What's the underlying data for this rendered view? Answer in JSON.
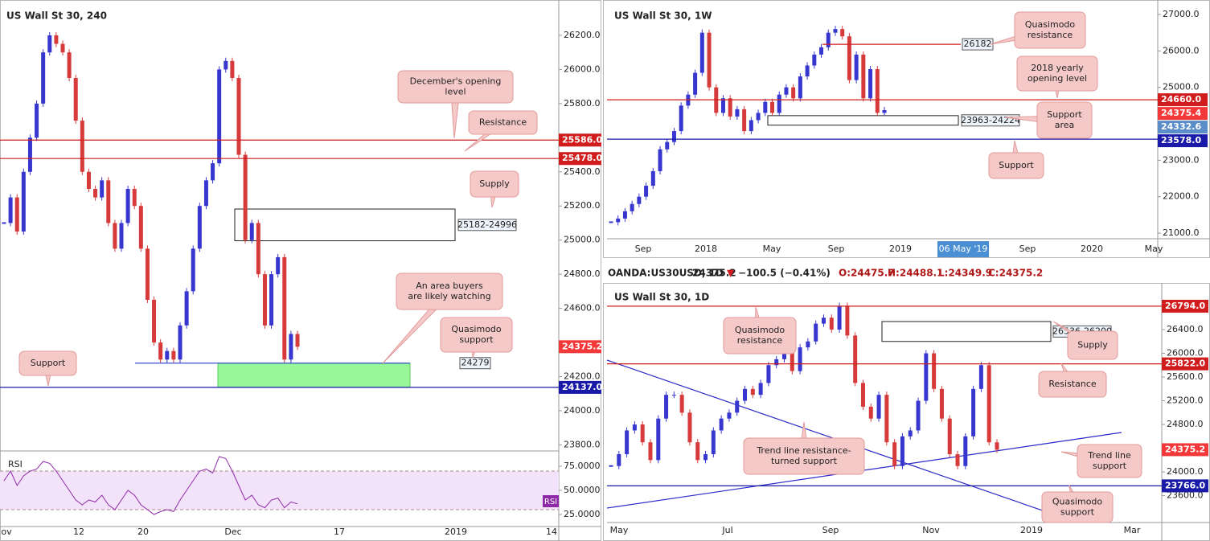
{
  "chart_data": [
    {
      "type": "candlestick",
      "title": "US Wall St 30, 240",
      "ylim": [
        23769,
        26407
      ],
      "yticks": [
        {
          "value": 26200,
          "label": "26200.0"
        },
        {
          "value": 26000,
          "label": "26000.0"
        },
        {
          "value": 25800,
          "label": "25800.0"
        },
        {
          "value": 25400,
          "label": "25400.0"
        },
        {
          "value": 25200,
          "label": "25200.0"
        },
        {
          "value": 25000,
          "label": "25000.0"
        },
        {
          "value": 24800,
          "label": "24800.0"
        },
        {
          "value": 24600,
          "label": "24600.0"
        },
        {
          "value": 24200,
          "label": "24200.0"
        },
        {
          "value": 24000,
          "label": "24000.0"
        },
        {
          "value": 23800,
          "label": "23800.0"
        }
      ],
      "xticks": [
        "ov",
        "12",
        "20",
        "Dec",
        "17",
        "2019",
        "14"
      ],
      "up_color": "#3737d0",
      "down_color": "#d63a3a",
      "closes": [
        25100,
        25250,
        25050,
        25400,
        25600,
        25800,
        26100,
        26200,
        26150,
        26100,
        25950,
        25700,
        25400,
        25300,
        25250,
        25350,
        25100,
        24950,
        25100,
        25300,
        25200,
        24950,
        24650,
        24400,
        24300,
        24350,
        24300,
        24500,
        24700,
        24950,
        25200,
        25350,
        25450,
        26000,
        26050,
        25950,
        25500,
        25000,
        25100,
        24800,
        24500,
        24800,
        24900,
        24300,
        24450,
        24375.2
      ],
      "levels": [
        {
          "value": 25586,
          "label": "25586.0",
          "color": "#d01c1c"
        },
        {
          "value": 25478,
          "label": "25478.0",
          "color": "#d01c1c"
        },
        {
          "value": 24137,
          "label": "24137.0",
          "color": "#1a1aa8"
        },
        {
          "value": 24279,
          "label": "24279",
          "color": "#3a4fd0"
        },
        {
          "value": 24375.2,
          "label": "24375.2",
          "color": "#f23838"
        }
      ],
      "zones": [
        {
          "range": [
            25182,
            24996
          ],
          "label": "25182-24996",
          "color": "none"
        },
        {
          "range": [
            24279,
            24137
          ],
          "color": "#98f898"
        }
      ],
      "annotations": [
        {
          "lines": [
            "December's opening",
            "level"
          ]
        },
        {
          "lines": [
            "Resistance"
          ]
        },
        {
          "lines": [
            "Supply"
          ]
        },
        {
          "lines": [
            "An area buyers",
            "are likely watching"
          ]
        },
        {
          "lines": [
            "Quasimodo",
            "support"
          ]
        },
        {
          "lines": [
            "Support"
          ]
        }
      ],
      "rsi": {
        "label": "RSI",
        "color": "#8e2aa8",
        "ylim": [
          12.5,
          90
        ],
        "band": [
          30,
          70
        ],
        "yticks": [
          {
            "value": 75,
            "label": "75.0000"
          },
          {
            "value": 50,
            "label": "50.0000"
          },
          {
            "value": 25,
            "label": "25.0000"
          }
        ],
        "values": [
          60,
          70,
          55,
          65,
          70,
          72,
          80,
          78,
          70,
          60,
          50,
          40,
          35,
          40,
          38,
          45,
          35,
          30,
          40,
          50,
          45,
          35,
          30,
          25,
          28,
          30,
          28,
          40,
          50,
          60,
          70,
          72,
          68,
          85,
          83,
          70,
          55,
          40,
          45,
          35,
          32,
          40,
          42,
          32,
          38,
          36
        ]
      }
    },
    {
      "type": "candlestick",
      "title": "US Wall St 30, 1W",
      "ylim": [
        20846,
        27287
      ],
      "yticks": [
        {
          "value": 27000,
          "label": "27000.0"
        },
        {
          "value": 26000,
          "label": "26000.0"
        },
        {
          "value": 25000,
          "label": "25000.0"
        },
        {
          "value": 23000,
          "label": "23000.0"
        },
        {
          "value": 22000,
          "label": "22000.0"
        },
        {
          "value": 21000,
          "label": "21000.0"
        }
      ],
      "xticks": [
        "Sep",
        "2018",
        "May",
        "Sep",
        "2019",
        "Sep",
        "2020",
        "May"
      ],
      "cursor_date": "06 May '19",
      "up_color": "#3737d0",
      "down_color": "#d63a3a",
      "closes": [
        21300,
        21400,
        21600,
        21800,
        22000,
        22300,
        22700,
        23300,
        23500,
        23800,
        24500,
        24800,
        25400,
        26500,
        25000,
        24300,
        24700,
        24200,
        24400,
        23800,
        24100,
        24300,
        24600,
        24300,
        24800,
        25000,
        24700,
        25300,
        25600,
        25900,
        26100,
        26500,
        26600,
        26400,
        25200,
        25900,
        24700,
        25500,
        24300,
        24375.4
      ],
      "levels": [
        {
          "value": 26182,
          "label": "26182",
          "color": "#d01c1c"
        },
        {
          "value": 24660,
          "label": "24660.0",
          "color": "#d01c1c"
        },
        {
          "value": 24375.4,
          "label": "24375.4",
          "color": "#f23838"
        },
        {
          "value": 24332.6,
          "label": "24332.6",
          "color": "#5b8ec9"
        },
        {
          "value": 23578,
          "label": "23578.0",
          "color": "#1a1aa8"
        }
      ],
      "zones": [
        {
          "range": [
            24224,
            23963
          ],
          "label": "23963-24224",
          "color": "none"
        }
      ],
      "annotations": [
        {
          "lines": [
            "Quasimodo",
            "resistance"
          ]
        },
        {
          "lines": [
            "2018 yearly",
            "opening level"
          ]
        },
        {
          "lines": [
            "Support",
            "area"
          ]
        },
        {
          "lines": [
            "Support"
          ]
        }
      ]
    },
    {
      "type": "candlestick",
      "title": "US Wall St 30, 1D",
      "header": {
        "symbol": "OANDA:US30USD, 1D",
        "price": "24375.2",
        "change": "−100.5 (−0.41%)",
        "open": "O:24475.7",
        "high": "H:24488.1",
        "low": "L:24349.9",
        "close": "C:24375.2"
      },
      "ylim": [
        23148,
        27118
      ],
      "yticks": [
        {
          "value": 26400,
          "label": "26400.0"
        },
        {
          "value": 26000,
          "label": "26000.0"
        },
        {
          "value": 25600,
          "label": "25600.0"
        },
        {
          "value": 25200,
          "label": "25200.0"
        },
        {
          "value": 24800,
          "label": "24800.0"
        },
        {
          "value": 24000,
          "label": "24000.0"
        },
        {
          "value": 23600,
          "label": "23600.0"
        }
      ],
      "xticks": [
        "May",
        "Jul",
        "Sep",
        "Nov",
        "2019",
        "Mar"
      ],
      "up_color": "#3737d0",
      "down_color": "#d63a3a",
      "closes": [
        24100,
        24300,
        24700,
        24800,
        24500,
        24200,
        24900,
        25300,
        25300,
        25000,
        24500,
        24200,
        24300,
        24700,
        24900,
        25000,
        25200,
        25400,
        25300,
        25500,
        25800,
        25900,
        26000,
        25700,
        26100,
        26200,
        26500,
        26600,
        26400,
        26800,
        26300,
        25500,
        25100,
        24900,
        25300,
        24500,
        24100,
        24600,
        24700,
        25200,
        26000,
        25400,
        24900,
        24300,
        24100,
        24600,
        25400,
        25800,
        24500,
        24375.2
      ],
      "levels": [
        {
          "value": 26794,
          "label": "26794.0",
          "color": "#d01c1c"
        },
        {
          "value": 25822,
          "label": "25822.0",
          "color": "#d01c1c"
        },
        {
          "value": 23766,
          "label": "23766.0",
          "color": "#1a1aa8"
        },
        {
          "value": 24375.2,
          "label": "24375.2",
          "color": "#f23838"
        }
      ],
      "zones": [
        {
          "range": [
            26536,
            26200
          ],
          "label": "26536-26200",
          "color": "none"
        }
      ],
      "annotations": [
        {
          "lines": [
            "Quasimodo",
            "resistance"
          ]
        },
        {
          "lines": [
            "Supply"
          ]
        },
        {
          "lines": [
            "Resistance"
          ]
        },
        {
          "lines": [
            "Trend line resistance-",
            "turned support"
          ]
        },
        {
          "lines": [
            "Trend line",
            "support"
          ]
        },
        {
          "lines": [
            "Quasimodo",
            "support"
          ]
        }
      ]
    }
  ]
}
